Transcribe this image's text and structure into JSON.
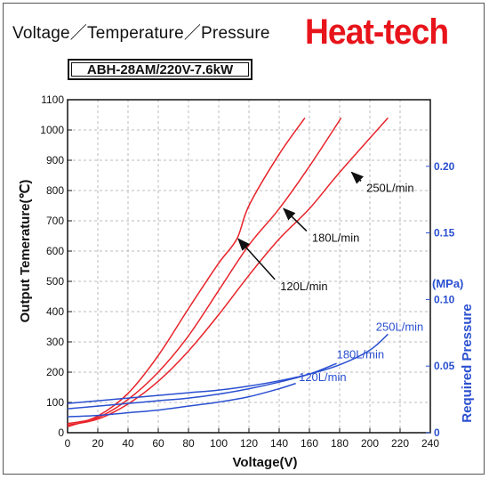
{
  "header": {
    "title": "Voltage／Temperature／Pressure",
    "brand": "Heat-tech",
    "model": "ABH-28AM/220V-7.6kW"
  },
  "chart_data": {
    "type": "line",
    "xlabel": "Voltage(V)",
    "ylabel": "Output Temerature(℃)",
    "y2label": "Required Pressure",
    "y2unit": "(MPa)",
    "xlim": [
      0,
      240
    ],
    "ylim": [
      0,
      1100
    ],
    "y2lim": [
      0,
      0.25
    ],
    "xticks": [
      0,
      20,
      40,
      60,
      80,
      100,
      120,
      140,
      160,
      180,
      200,
      220,
      240
    ],
    "yticks": [
      0,
      100,
      200,
      300,
      400,
      500,
      600,
      700,
      800,
      900,
      1000,
      1100
    ],
    "y2ticks": [
      0,
      0.05,
      0.1,
      0.15,
      0.2
    ],
    "y2ticklabels": [
      "0",
      "0.05",
      "0.10",
      "0.15",
      "0.20"
    ],
    "grid": true,
    "temperature_series": [
      {
        "name": "120L/min",
        "color": "#e8232a",
        "x": [
          0,
          20,
          40,
          60,
          80,
          100,
          112,
          120,
          140,
          157
        ],
        "y": [
          20,
          55,
          130,
          255,
          410,
          560,
          640,
          750,
          920,
          1040
        ]
      },
      {
        "name": "180L/min",
        "color": "#e8232a",
        "x": [
          0,
          20,
          40,
          60,
          80,
          100,
          120,
          140,
          160,
          181
        ],
        "y": [
          30,
          50,
          110,
          200,
          320,
          470,
          620,
          740,
          880,
          1040
        ]
      },
      {
        "name": "250L/min",
        "color": "#e8232a",
        "x": [
          0,
          20,
          40,
          60,
          80,
          100,
          120,
          140,
          160,
          180,
          212
        ],
        "y": [
          25,
          45,
          95,
          170,
          270,
          390,
          520,
          640,
          740,
          860,
          1040
        ]
      }
    ],
    "pressure_series": [
      {
        "name": "120L/min",
        "color": "#2a4fd0",
        "x": [
          0,
          20,
          40,
          60,
          80,
          100,
          120,
          140,
          151
        ],
        "y": [
          0.012,
          0.013,
          0.015,
          0.017,
          0.02,
          0.023,
          0.027,
          0.033,
          0.037
        ]
      },
      {
        "name": "180L/min",
        "color": "#2a4fd0",
        "x": [
          0,
          20,
          40,
          60,
          80,
          100,
          120,
          140,
          160,
          178
        ],
        "y": [
          0.018,
          0.02,
          0.022,
          0.024,
          0.026,
          0.029,
          0.033,
          0.038,
          0.044,
          0.052
        ]
      },
      {
        "name": "250L/min",
        "color": "#2a4fd0",
        "x": [
          0,
          20,
          40,
          60,
          80,
          100,
          120,
          140,
          160,
          180,
          200,
          212
        ],
        "y": [
          0.022,
          0.024,
          0.026,
          0.028,
          0.03,
          0.032,
          0.035,
          0.039,
          0.044,
          0.051,
          0.062,
          0.074
        ]
      }
    ],
    "annotations": [
      {
        "text": "250L/min",
        "color": "#111111",
        "ax": 188,
        "ay": 860,
        "tx": 193,
        "ty": 790
      },
      {
        "text": "180L/min",
        "color": "#111111",
        "ax": 143,
        "ay": 740,
        "tx": 157,
        "ty": 625
      },
      {
        "text": "120L/min",
        "color": "#111111",
        "ax": 113,
        "ay": 640,
        "tx": 136,
        "ty": 465
      },
      {
        "text": "250L/min",
        "color": "#2a4fd0",
        "tx": 204,
        "ty": 0.074
      },
      {
        "text": "180L/min",
        "color": "#2a4fd0",
        "tx": 178,
        "ty": 0.053
      },
      {
        "text": "120L/min",
        "color": "#2a4fd0",
        "tx": 153,
        "ty": 0.036
      }
    ]
  }
}
